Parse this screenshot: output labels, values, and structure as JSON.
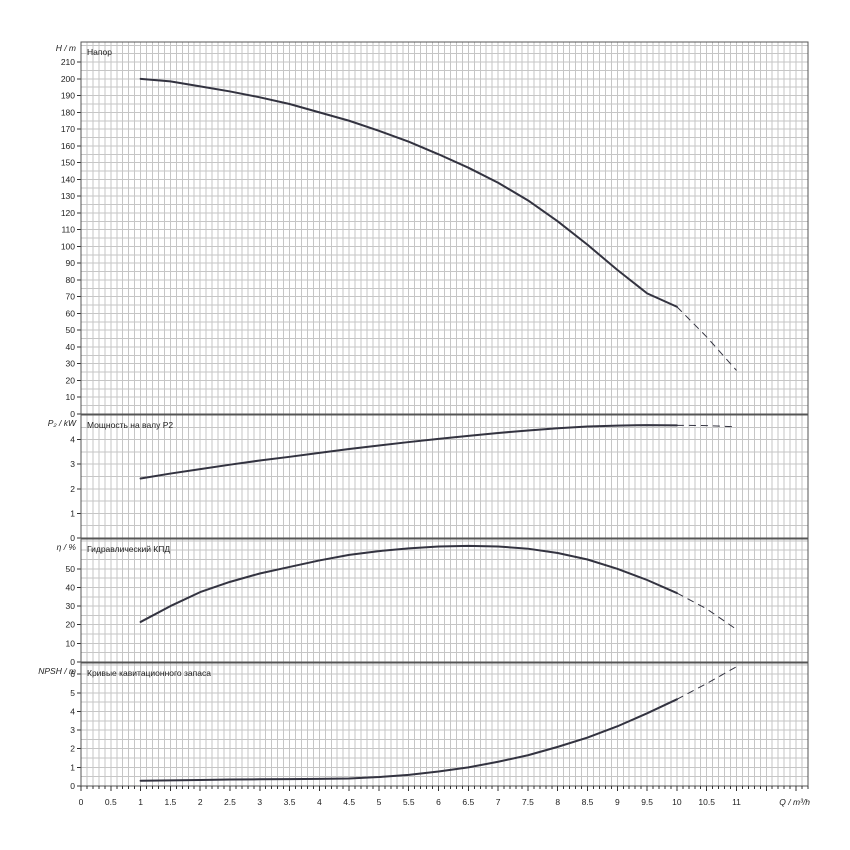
{
  "chart_data": {
    "type": "line",
    "x_axis": {
      "label": "Q / m³/h",
      "range": [
        0,
        12.2
      ],
      "ticks": [
        0,
        0.5,
        1,
        1.5,
        2,
        2.5,
        3,
        3.5,
        4,
        4.5,
        5,
        5.5,
        6,
        6.5,
        7,
        7.5,
        8,
        8.5,
        9,
        9.5,
        10,
        10.5,
        11
      ],
      "tick_labels": [
        "0",
        "0.5",
        "1",
        "1.5",
        "2",
        "2.5",
        "3",
        "3.5",
        "4",
        "4.5",
        "5",
        "5.5",
        "6",
        "6.5",
        "7",
        "7.5",
        "8",
        "8.5",
        "9",
        "9.5",
        "10",
        "10.5",
        "11"
      ],
      "minor_step": 0.1
    },
    "grid": true,
    "line_color": "#333340",
    "panels": [
      {
        "id": "head",
        "title": "Напор",
        "ylabel": "H / m",
        "ylim": [
          0,
          222
        ],
        "ticks": [
          0,
          10,
          20,
          30,
          40,
          50,
          60,
          70,
          80,
          90,
          100,
          110,
          120,
          130,
          140,
          150,
          160,
          170,
          180,
          190,
          200,
          210
        ],
        "tick_labels": [
          "0",
          "10",
          "20",
          "30",
          "40",
          "50",
          "60",
          "70",
          "80",
          "90",
          "100",
          "110",
          "120",
          "130",
          "140",
          "150",
          "160",
          "170",
          "180",
          "190",
          "200",
          "210"
        ],
        "series": [
          {
            "x": [
              1,
              1.5,
              2,
              2.5,
              3,
              3.5,
              4,
              4.5,
              5,
              5.5,
              6,
              6.5,
              7,
              7.5,
              8,
              8.5,
              9,
              9.5,
              10
            ],
            "y": [
              200,
              198.5,
              195.5,
              192.5,
              189,
              185,
              180,
              175,
              169,
              162.5,
              155,
              147,
              138,
              127.5,
              115,
              101,
              86,
              72,
              64
            ]
          }
        ],
        "extrapolated": {
          "x": [
            10,
            10.5,
            11
          ],
          "y": [
            64,
            46,
            26
          ]
        }
      },
      {
        "id": "power",
        "title": "Мощность на валу P2",
        "ylabel": "P₂ / kW",
        "ylim": [
          0,
          5
        ],
        "ticks": [
          0,
          1,
          2,
          3,
          4
        ],
        "tick_labels": [
          "0",
          "1",
          "2",
          "3",
          "4"
        ],
        "series": [
          {
            "x": [
              1,
              1.5,
              2,
              2.5,
              3,
              3.5,
              4,
              4.5,
              5,
              5.5,
              6,
              6.5,
              7,
              7.5,
              8,
              8.5,
              9,
              9.5,
              10
            ],
            "y": [
              2.42,
              2.62,
              2.8,
              2.98,
              3.15,
              3.3,
              3.46,
              3.62,
              3.76,
              3.9,
              4.03,
              4.15,
              4.27,
              4.37,
              4.46,
              4.53,
              4.57,
              4.59,
              4.58
            ]
          }
        ],
        "extrapolated": {
          "x": [
            10,
            10.5,
            11
          ],
          "y": [
            4.58,
            4.57,
            4.52
          ]
        }
      },
      {
        "id": "efficiency",
        "title": "Гидравлический КПД",
        "ylabel": "η / %",
        "ylim": [
          0,
          66
        ],
        "ticks": [
          0,
          10,
          20,
          30,
          40,
          50
        ],
        "tick_labels": [
          "0",
          "10",
          "20",
          "30",
          "40",
          "50"
        ],
        "series": [
          {
            "x": [
              1,
              1.5,
              2,
              2.5,
              3,
              3.5,
              4,
              4.5,
              5,
              5.5,
              6,
              6.5,
              7,
              7.5,
              8,
              8.5,
              9,
              9.5,
              10
            ],
            "y": [
              21.5,
              30,
              37.5,
              43,
              47.5,
              51,
              54.5,
              57.5,
              59.5,
              61,
              62,
              62.3,
              62,
              60.8,
              58.5,
              55,
              50,
              44,
              37
            ]
          }
        ],
        "extrapolated": {
          "x": [
            10,
            10.5,
            11
          ],
          "y": [
            37,
            28.5,
            17.5
          ]
        }
      },
      {
        "id": "npsh",
        "title": "Кривые кавитационного запаса",
        "ylabel": "NPSH / m",
        "ylim": [
          0,
          6.6
        ],
        "ticks": [
          0,
          1,
          2,
          3,
          4,
          5,
          6
        ],
        "tick_labels": [
          "0",
          "1",
          "2",
          "3",
          "4",
          "5",
          "6"
        ],
        "series": [
          {
            "x": [
              1,
              1.5,
              2,
              2.5,
              3,
              3.5,
              4,
              4.5,
              5,
              5.5,
              6,
              6.5,
              7,
              7.5,
              8,
              8.5,
              9,
              9.5,
              10
            ],
            "y": [
              0.28,
              0.3,
              0.32,
              0.35,
              0.36,
              0.37,
              0.38,
              0.4,
              0.48,
              0.6,
              0.78,
              1.0,
              1.3,
              1.65,
              2.1,
              2.6,
              3.2,
              3.9,
              4.65
            ]
          }
        ],
        "extrapolated": {
          "x": [
            10,
            10.5,
            11
          ],
          "y": [
            4.65,
            5.5,
            6.4
          ]
        }
      }
    ]
  }
}
